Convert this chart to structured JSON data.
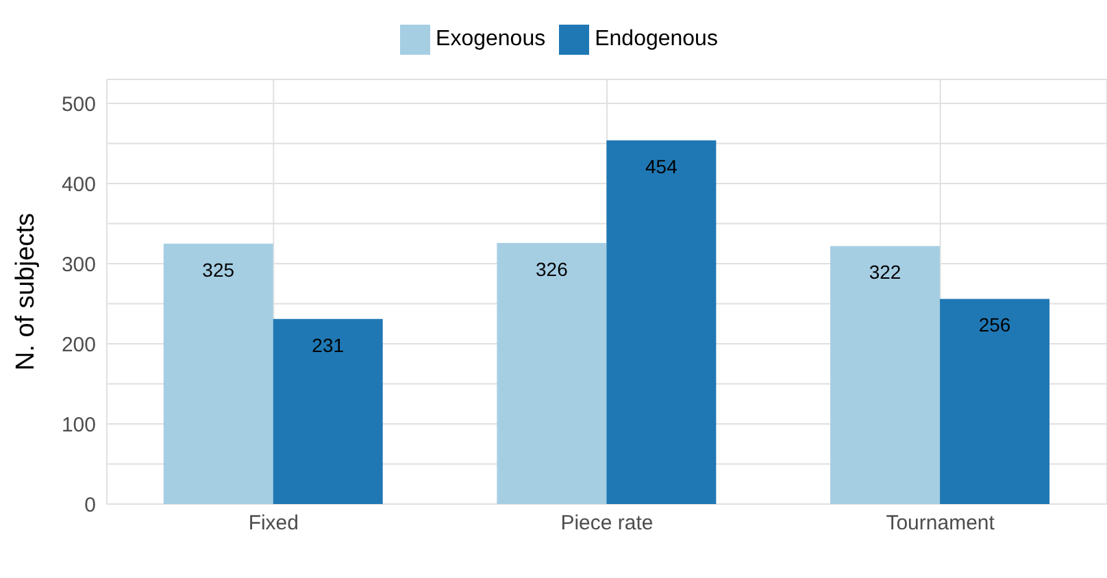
{
  "chart_data": {
    "type": "bar",
    "ylabel": "N. of subjects",
    "categories": [
      "Fixed",
      "Piece rate",
      "Tournament"
    ],
    "series": [
      {
        "name": "Exogenous",
        "color": "#a6cee3",
        "values": [
          325,
          326,
          322
        ]
      },
      {
        "name": "Endogenous",
        "color": "#1f78b4",
        "values": [
          231,
          454,
          256
        ]
      }
    ],
    "ylim": [
      0,
      530
    ],
    "yticks": [
      0,
      {
        "value": 50,
        "label": null
      },
      100,
      {
        "value": 150,
        "label": null
      },
      200,
      {
        "value": 250,
        "label": null
      },
      300,
      {
        "value": 350,
        "label": null
      },
      400,
      {
        "value": 450,
        "label": null
      },
      500
    ],
    "grid": true,
    "legend": "top",
    "data_labels": true
  }
}
